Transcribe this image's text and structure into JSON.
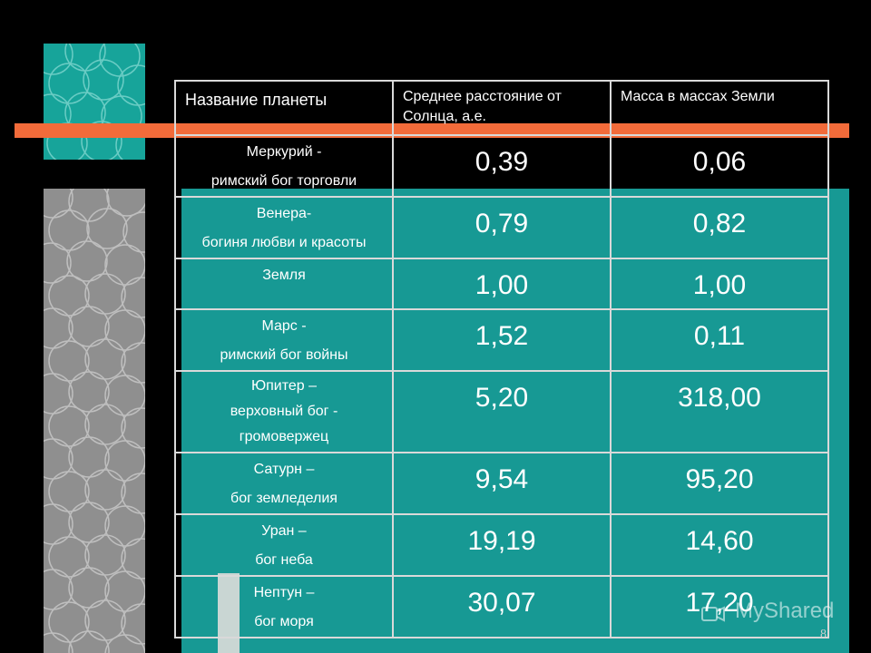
{
  "table": {
    "headers": {
      "name": "Название планеты",
      "distance": "Среднее расстояние от Солнца, а.е.",
      "mass": "Масса в массах Земли"
    },
    "rows": [
      {
        "name_line1": "Меркурий -",
        "name_line2": "римский бог торговли",
        "name_line3": "",
        "distance": "0,39",
        "mass": "0,06"
      },
      {
        "name_line1": "Венера-",
        "name_line2": "богиня любви и красоты",
        "name_line3": "",
        "distance": "0,79",
        "mass": "0,82"
      },
      {
        "name_line1": "Земля",
        "name_line2": "",
        "name_line3": "",
        "distance": "1,00",
        "mass": "1,00"
      },
      {
        "name_line1": "Марс -",
        "name_line2": "римский бог войны",
        "name_line3": "",
        "distance": "1,52",
        "mass": "0,11"
      },
      {
        "name_line1": "Юпитер –",
        "name_line2": "верховный бог -",
        "name_line3": "громовержец",
        "distance": "5,20",
        "mass": "318,00"
      },
      {
        "name_line1": "Сатурн –",
        "name_line2": "бог земледелия",
        "name_line3": "",
        "distance": "9,54",
        "mass": "95,20"
      },
      {
        "name_line1": "Уран –",
        "name_line2": "бог неба",
        "name_line3": "",
        "distance": "19,19",
        "mass": "14,60"
      },
      {
        "name_line1": "Нептун –",
        "name_line2": "бог моря",
        "name_line3": "",
        "distance": "30,07",
        "mass": "17,20"
      }
    ]
  },
  "page_number": "8",
  "watermark": {
    "text": "MyShared",
    "icon": "myshared-logo-icon"
  },
  "colors": {
    "background": "#000000",
    "teal": "#179994",
    "teal_square": "#17a49a",
    "gray": "#8f8f8f",
    "orange": "#f26b3a",
    "text": "#ffffff"
  }
}
